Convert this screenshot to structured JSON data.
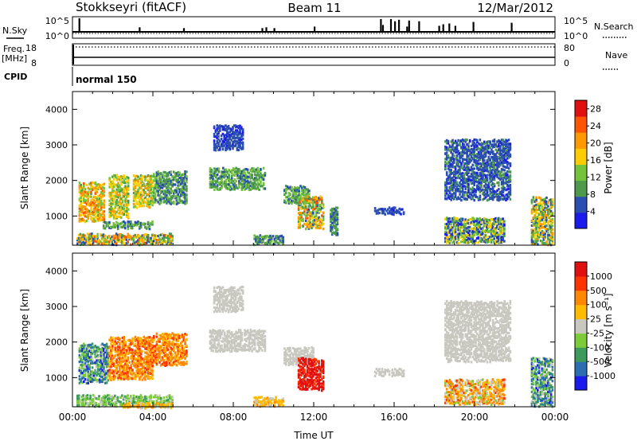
{
  "header": {
    "station": "Stokkseyri (fitACF)",
    "beam": "Beam 11",
    "date": "12/Mar/2012"
  },
  "top_panels": {
    "nsky_label": "N.Sky",
    "nsky_ticks": [
      "10^5",
      "10^0"
    ],
    "nsearch_label": "N.Search",
    "nsearch_ticks": [
      "10^5",
      "10^0"
    ],
    "freq_label_1": "Freq.",
    "freq_label_2": "[MHz]",
    "freq_ticks": [
      "18",
      "8"
    ],
    "nave_label": "Nave",
    "nave_ticks": [
      "80",
      "0"
    ],
    "cpid_label": "CPID",
    "cpid_value": "normal 150",
    "nsky_spikes": [
      0.3,
      3.3,
      5.5,
      9.4,
      9.6,
      10.0,
      12.0,
      15.3,
      15.4,
      15.8,
      16.0,
      16.2,
      16.6,
      16.7,
      17.2,
      18.2,
      18.4,
      18.7,
      19.0,
      19.9,
      21.8
    ],
    "nsky_spike_heights": [
      0.9,
      0.3,
      0.25,
      0.25,
      0.3,
      0.25,
      0.35,
      0.85,
      0.45,
      0.85,
      0.7,
      0.8,
      0.35,
      0.75,
      0.7,
      0.4,
      0.5,
      0.55,
      0.4,
      0.65,
      0.6
    ]
  },
  "chart_data": [
    {
      "type": "heatmap",
      "name": "power",
      "xlabel": "",
      "ylabel": "Slant Range [km]",
      "xlim": [
        0,
        24
      ],
      "ylim": [
        180,
        4500
      ],
      "yticks": [
        "1000",
        "2000",
        "3000",
        "4000"
      ],
      "ytick_values": [
        1000,
        2000,
        3000,
        4000
      ],
      "colorbar_label": "Power [dB]",
      "colorbar_ticks": [
        "4",
        "8",
        "12",
        "16",
        "20",
        "24",
        "28"
      ],
      "colorbar_range": [
        0,
        30
      ],
      "colorbar_colors": [
        "#1a1aee",
        "#2b4fb0",
        "#4d9a4d",
        "#74c33a",
        "#ffcc00",
        "#ff9900",
        "#ff5500",
        "#e01010"
      ],
      "regions": [
        {
          "x0": 0.3,
          "x1": 1.6,
          "y0": 900,
          "y1": 2000,
          "v": 18,
          "spread": 7
        },
        {
          "x0": 1.8,
          "x1": 2.8,
          "y0": 1000,
          "y1": 2200,
          "v": 15,
          "spread": 6
        },
        {
          "x0": 3.0,
          "x1": 4.0,
          "y0": 1300,
          "y1": 2200,
          "v": 16,
          "spread": 6
        },
        {
          "x0": 4.0,
          "x1": 5.7,
          "y0": 1400,
          "y1": 2300,
          "v": 9,
          "spread": 4
        },
        {
          "x0": 0.2,
          "x1": 5.0,
          "y0": 250,
          "y1": 550,
          "v": 14,
          "spread": 10
        },
        {
          "x0": 1.5,
          "x1": 4.0,
          "y0": 700,
          "y1": 900,
          "v": 10,
          "spread": 5
        },
        {
          "x0": 6.8,
          "x1": 9.6,
          "y0": 1800,
          "y1": 2400,
          "v": 10,
          "spread": 4
        },
        {
          "x0": 10.5,
          "x1": 11.8,
          "y0": 1400,
          "y1": 1900,
          "v": 10,
          "spread": 4
        },
        {
          "x0": 11.2,
          "x1": 12.5,
          "y0": 700,
          "y1": 1600,
          "v": 16,
          "spread": 10
        },
        {
          "x0": 12.8,
          "x1": 13.2,
          "y0": 500,
          "y1": 1300,
          "v": 8,
          "spread": 3
        },
        {
          "x0": 15.0,
          "x1": 16.5,
          "y0": 1100,
          "y1": 1300,
          "v": 5,
          "spread": 2
        },
        {
          "x0": 18.5,
          "x1": 21.8,
          "y0": 1500,
          "y1": 3200,
          "v": 6,
          "spread": 3
        },
        {
          "x0": 18.5,
          "x1": 21.5,
          "y0": 300,
          "y1": 1000,
          "v": 10,
          "spread": 8
        },
        {
          "x0": 22.8,
          "x1": 23.9,
          "y0": 250,
          "y1": 1600,
          "v": 13,
          "spread": 9
        },
        {
          "x0": 7.0,
          "x1": 8.5,
          "y0": 2900,
          "y1": 3600,
          "v": 5,
          "spread": 2
        },
        {
          "x0": 9.0,
          "x1": 10.5,
          "y0": 250,
          "y1": 500,
          "v": 9,
          "spread": 5
        }
      ]
    },
    {
      "type": "heatmap",
      "name": "velocity",
      "xlabel": "Time UT",
      "ylabel": "Slant Range [km]",
      "xlim": [
        0,
        24
      ],
      "ylim": [
        180,
        4500
      ],
      "xticks": [
        "00:00",
        "04:00",
        "08:00",
        "12:00",
        "16:00",
        "20:00",
        "00:00"
      ],
      "xtick_values": [
        0,
        4,
        8,
        12,
        16,
        20,
        24
      ],
      "yticks": [
        "1000",
        "2000",
        "3000",
        "4000"
      ],
      "ytick_values": [
        1000,
        2000,
        3000,
        4000
      ],
      "colorbar_label": "Velocity [m s⁻¹]",
      "colorbar_ticks": [
        "1000",
        "500",
        "100",
        "25",
        "-25",
        "-100",
        "-500",
        "-1000"
      ],
      "colorbar_colors": [
        "#1a1aee",
        "#2b6fb0",
        "#3d9a5a",
        "#7ccc3a",
        "#c8c8c0",
        "#ffbb00",
        "#ff8800",
        "#ff3300",
        "#e01010"
      ],
      "regions": [
        {
          "x0": 0.3,
          "x1": 1.8,
          "y0": 900,
          "y1": 2000,
          "v": 2,
          "spread": 2
        },
        {
          "x0": 1.8,
          "x1": 4.0,
          "y0": 1000,
          "y1": 2200,
          "v": 6,
          "spread": 1
        },
        {
          "x0": 4.0,
          "x1": 5.7,
          "y0": 1400,
          "y1": 2300,
          "v": 6,
          "spread": 1
        },
        {
          "x0": 0.2,
          "x1": 5.0,
          "y0": 250,
          "y1": 550,
          "v": 3,
          "spread": 1
        },
        {
          "x0": 2.5,
          "x1": 5.0,
          "y0": 200,
          "y1": 350,
          "v": 5,
          "spread": 1
        },
        {
          "x0": 6.8,
          "x1": 9.6,
          "y0": 1800,
          "y1": 2400,
          "v": 4,
          "spread": 0
        },
        {
          "x0": 10.5,
          "x1": 12.0,
          "y0": 1400,
          "y1": 1900,
          "v": 4,
          "spread": 0
        },
        {
          "x0": 11.2,
          "x1": 12.5,
          "y0": 700,
          "y1": 1600,
          "v": 8,
          "spread": 1
        },
        {
          "x0": 15.0,
          "x1": 16.5,
          "y0": 1100,
          "y1": 1300,
          "v": 4,
          "spread": 0
        },
        {
          "x0": 18.5,
          "x1": 21.8,
          "y0": 1500,
          "y1": 3200,
          "v": 4,
          "spread": 0
        },
        {
          "x0": 18.5,
          "x1": 21.5,
          "y0": 300,
          "y1": 1000,
          "v": 5,
          "spread": 2
        },
        {
          "x0": 22.8,
          "x1": 23.9,
          "y0": 250,
          "y1": 1600,
          "v": 2,
          "spread": 2
        },
        {
          "x0": 7.0,
          "x1": 8.5,
          "y0": 2900,
          "y1": 3600,
          "v": 4,
          "spread": 0
        },
        {
          "x0": 9.0,
          "x1": 10.5,
          "y0": 250,
          "y1": 500,
          "v": 5,
          "spread": 1
        }
      ]
    }
  ]
}
